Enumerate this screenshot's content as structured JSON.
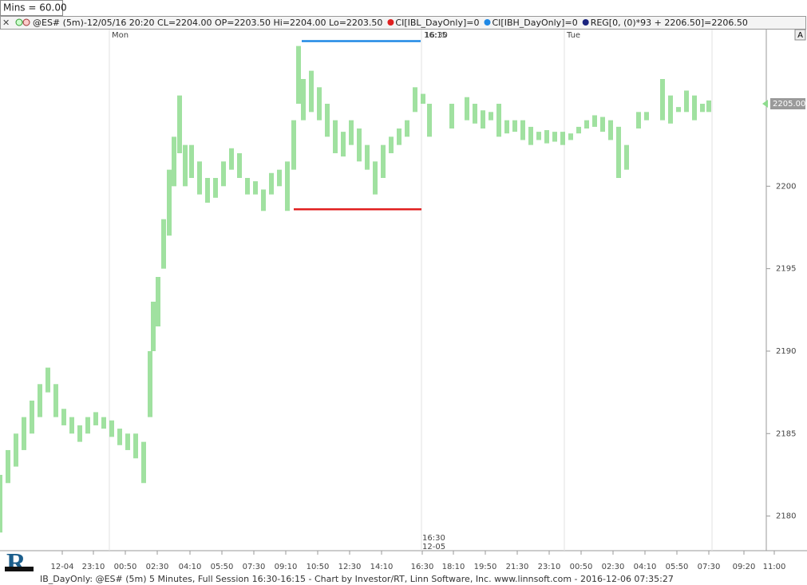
{
  "chart_data": {
    "type": "range-bar",
    "top_label": "Mins = 60.00",
    "legend": {
      "quote": "@ES# (5m)-12/05/16 20:20 CL=2204.00 OP=2203.50 Hi=2204.00 Lo=2203.50",
      "items": [
        {
          "text": "CI[IBL_DayOnly]=0",
          "color": "#e02020"
        },
        {
          "text": "CI[IBH_DayOnly]=0",
          "color": "#1e88e5"
        },
        {
          "text": "REG[0, (0)*93 + 2206.50]=2206.50",
          "color": "#1a237e"
        }
      ]
    },
    "footer": "IB_DayOnly: @ES# (5m) 5 Minutes, Full Session 16:30-16:15 - Chart by Investor/RT, Linn Software, Inc. www.linnsoft.com - 2016-12-06 07:35:27",
    "color": "#8fdc8f",
    "x": [
      0,
      5,
      10,
      15,
      20,
      25,
      30,
      35,
      40,
      45,
      50,
      55,
      60,
      65,
      70,
      75,
      80,
      85,
      90,
      94,
      96,
      99,
      102.5,
      106,
      109,
      112.5,
      116,
      120,
      125,
      130,
      135,
      140,
      145,
      150,
      155,
      160,
      165,
      170,
      175,
      180,
      184,
      187,
      190,
      195,
      200,
      205,
      210,
      215,
      220,
      225,
      230,
      235,
      240,
      245,
      250,
      255,
      260,
      265,
      269,
      283,
      287.5,
      292.5,
      297.5,
      302.5,
      307.5,
      312.5,
      317.5,
      322.5,
      327.5,
      332.5,
      337.5,
      342.5,
      347.5,
      352.5,
      357.5,
      362.5,
      367.5,
      372.5,
      377.5,
      382.5,
      387.5,
      392.5,
      396,
      400,
      405,
      410,
      415,
      420,
      425,
      430,
      435,
      440,
      444
    ],
    "high": [
      2182.5,
      2184,
      2185,
      2186,
      2187,
      2188,
      2189,
      2188,
      2186.5,
      2186,
      2185.5,
      2186,
      2186.3,
      2186,
      2185.8,
      2185.3,
      2185,
      2185,
      2184.5,
      2190,
      2193,
      2194.5,
      2198,
      2201,
      2203,
      2205.5,
      2202.5,
      2202.5,
      2201.5,
      2200.5,
      2200.5,
      2201.5,
      2202.3,
      2202,
      2200.5,
      2200.3,
      2199.8,
      2200.8,
      2201,
      2201.5,
      2204,
      2208.5,
      2206.5,
      2207,
      2206,
      2205,
      2204,
      2203.3,
      2204,
      2203.5,
      2202.5,
      2201.5,
      2202.5,
      2203,
      2203.5,
      2204,
      2206,
      2205.6,
      2205,
      2205,
      2204.5,
      2205.4,
      2205,
      2204.6,
      2204.5,
      2205,
      2204,
      2204,
      2204,
      2203.6,
      2203.3,
      2203.4,
      2203.3,
      2203.3,
      2203.2,
      2203.6,
      2204,
      2204.3,
      2204.2,
      2204,
      2203.6,
      2202.5,
      2202.5,
      2204.5,
      2204.5,
      2205.5,
      2206.5,
      2205.5,
      2204.8,
      2205.8,
      2205.5,
      2205,
      2205.2
    ],
    "low": [
      2179,
      2182,
      2183,
      2184,
      2185,
      2186,
      2187.5,
      2186,
      2185.5,
      2185,
      2184.5,
      2185,
      2185.5,
      2185.3,
      2184.8,
      2184.3,
      2184,
      2183.5,
      2182,
      2186,
      2190,
      2191.5,
      2195,
      2197,
      2200,
      2202,
      2200,
      2200.5,
      2199.5,
      2199,
      2199.3,
      2200,
      2201,
      2200.5,
      2199.5,
      2199.5,
      2198.5,
      2199.5,
      2200,
      2198.5,
      2201,
      2205,
      2204,
      2204.5,
      2204,
      2203,
      2202,
      2201.8,
      2202.5,
      2201.5,
      2201,
      2199.5,
      2200.5,
      2202,
      2202.5,
      2203,
      2204.5,
      2205,
      2203,
      2203.5,
      2204.5,
      2204,
      2203.8,
      2203.5,
      2204,
      2203,
      2203.2,
      2203.3,
      2202.8,
      2202.5,
      2202.8,
      2202.6,
      2202.7,
      2202.5,
      2202.8,
      2203.2,
      2203.5,
      2203.6,
      2203.3,
      2202.8,
      2200.5,
      2201,
      2202.5,
      2203.5,
      2204,
      2205.5,
      2204,
      2203.8,
      2204.5,
      2204.5,
      2204,
      2204.5,
      2204.5
    ],
    "levels": [
      {
        "value": 2208.8,
        "x": [
          189,
          263.5
        ],
        "color": "#1e88e5"
      },
      {
        "value": 2198.6,
        "x": [
          184,
          264
        ],
        "color": "#e02020"
      }
    ],
    "last": {
      "value": 2205,
      "label": "2205.00"
    },
    "xlim": [
      0,
      505
    ],
    "ylim": [
      2177.9,
      2209.5
    ],
    "yticks": [
      2180,
      2185,
      2190,
      2195,
      2200
    ],
    "xticks": [
      {
        "value": 39,
        "label": "12-04"
      },
      {
        "value": 58.5,
        "label": "23:10"
      },
      {
        "value": 78.5,
        "label": "00:50"
      },
      {
        "value": 98.5,
        "label": "02:30"
      },
      {
        "value": 119,
        "label": "04:10"
      },
      {
        "value": 139,
        "label": "05:50"
      },
      {
        "value": 159,
        "label": "07:30"
      },
      {
        "value": 179,
        "label": "09:10"
      },
      {
        "value": 199,
        "label": "10:50"
      },
      {
        "value": 219,
        "label": "12:30"
      },
      {
        "value": 239,
        "label": "14:10"
      },
      {
        "value": 264.5,
        "label": "16:30"
      },
      {
        "value": 284,
        "label": "18:10"
      },
      {
        "value": 304,
        "label": "19:50"
      },
      {
        "value": 324,
        "label": "21:30"
      },
      {
        "value": 344,
        "label": "23:10"
      },
      {
        "value": 364,
        "label": "00:50"
      },
      {
        "value": 384,
        "label": "02:30"
      },
      {
        "value": 404,
        "label": "04:10"
      },
      {
        "value": 424,
        "label": "05:50"
      },
      {
        "value": 444,
        "label": "07:30"
      },
      {
        "value": 466,
        "label": "09:20"
      },
      {
        "value": 485,
        "label": "11:00"
      }
    ],
    "dividers": [
      {
        "value": 68.5,
        "label": "Mon"
      },
      {
        "value": 264,
        "label": "16:15"
      },
      {
        "value": 353.5,
        "label": "Tue"
      },
      {
        "value": 446
      }
    ],
    "session_marks": [
      {
        "value": 266,
        "label": "16:30",
        "where": "top"
      },
      {
        "value": 264,
        "label": "16:30",
        "sub": "12-05",
        "where": "bottom"
      }
    ]
  }
}
